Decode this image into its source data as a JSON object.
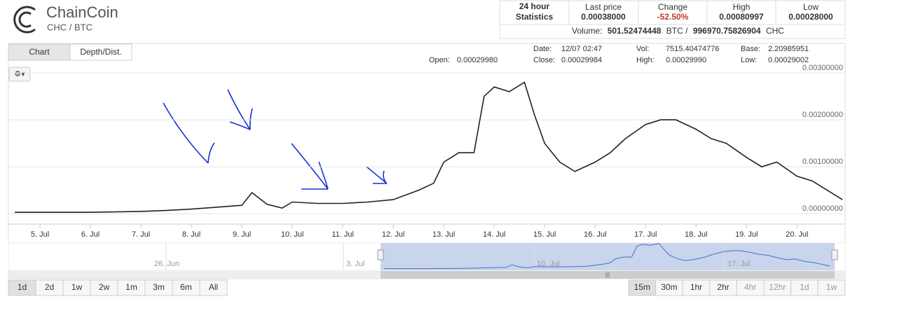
{
  "header": {
    "title": "ChainCoin",
    "pair": "CHC / BTC"
  },
  "stats": {
    "period": "24 hour Statistics",
    "last_price": {
      "label": "Last price",
      "value": "0.00038000"
    },
    "change": {
      "label": "Change",
      "value": "-52.50%"
    },
    "high": {
      "label": "High",
      "value": "0.00080997"
    },
    "low": {
      "label": "Low",
      "value": "0.00028000"
    },
    "volume": {
      "label": "Volume:",
      "base": "501.52474448",
      "base_unit": "BTC /",
      "quote": "996970.75826904",
      "quote_unit": "CHC"
    }
  },
  "tabs": [
    "Chart",
    "Depth/Dist."
  ],
  "ohlc": {
    "open": {
      "label": "Open:",
      "value": "0.00029980"
    },
    "date": {
      "label": "Date:",
      "value": "12/07 02:47"
    },
    "close": {
      "label": "Close:",
      "value": "0.00029984"
    },
    "vol": {
      "label": "Vol:",
      "value": "7515.40474776"
    },
    "high": {
      "label": "High:",
      "value": "0.00029990"
    },
    "base": {
      "label": "Base:",
      "value": "2.20985951"
    },
    "low": {
      "label": "Low:",
      "value": "0.00029002"
    }
  },
  "chart_data": {
    "type": "line",
    "color": "#222222",
    "x": [
      4.5,
      5,
      5.5,
      6,
      6.5,
      7,
      7.5,
      8,
      8.5,
      9,
      9.2,
      9.5,
      9.8,
      10,
      10.5,
      11,
      11.5,
      12,
      12.5,
      12.8,
      13,
      13.3,
      13.6,
      13.8,
      14,
      14.3,
      14.6,
      14.8,
      15,
      15.3,
      15.6,
      16,
      16.3,
      16.6,
      17,
      17.3,
      17.6,
      18,
      18.3,
      18.6,
      19,
      19.3,
      19.6,
      20,
      20.3,
      20.6,
      20.9
    ],
    "values": [
      3e-05,
      3e-05,
      3e-05,
      3e-05,
      4e-05,
      5e-05,
      7e-05,
      0.0001,
      0.00014,
      0.00018,
      0.00045,
      0.0002,
      0.00012,
      0.00025,
      0.00022,
      0.00022,
      0.00025,
      0.0003,
      0.0005,
      0.00065,
      0.0011,
      0.0013,
      0.0013,
      0.0025,
      0.0027,
      0.0026,
      0.0028,
      0.0021,
      0.0015,
      0.0011,
      0.0009,
      0.0011,
      0.0013,
      0.0016,
      0.0019,
      0.002,
      0.002,
      0.0018,
      0.0016,
      0.0015,
      0.0012,
      0.001,
      0.0011,
      0.0008,
      0.0007,
      0.0005,
      0.0003
    ],
    "xlim": [
      4.375,
      20.94
    ],
    "ylim": [
      -0.00019,
      0.00321
    ],
    "xticks": [
      {
        "value": 5,
        "label": "5. Jul"
      },
      {
        "value": 6,
        "label": "6. Jul"
      },
      {
        "value": 7,
        "label": "7. Jul"
      },
      {
        "value": 8,
        "label": "8. Jul"
      },
      {
        "value": 9,
        "label": "9. Jul"
      },
      {
        "value": 10,
        "label": "10. Jul"
      },
      {
        "value": 11,
        "label": "11. Jul"
      },
      {
        "value": 12,
        "label": "12. Jul"
      },
      {
        "value": 13,
        "label": "13. Jul"
      },
      {
        "value": 14,
        "label": "14. Jul"
      },
      {
        "value": 15,
        "label": "15. Jul"
      },
      {
        "value": 16,
        "label": "16. Jul"
      },
      {
        "value": 17,
        "label": "17. Jul"
      },
      {
        "value": 18,
        "label": "18. Jul"
      },
      {
        "value": 19,
        "label": "19. Jul"
      },
      {
        "value": 20,
        "label": "20. Jul"
      }
    ],
    "yticks": [
      {
        "value": 0,
        "label": "0.00000000"
      },
      {
        "value": 0.001,
        "label": "0.00100000"
      },
      {
        "value": 0.002,
        "label": "0.00200000"
      },
      {
        "value": 0.003,
        "label": "0.00300000"
      }
    ],
    "grid": true
  },
  "navigator": [
    "26. Jun",
    "3. Jul",
    "10. Jul",
    "17. Jul"
  ],
  "ranges": [
    "1d",
    "2d",
    "1w",
    "2w",
    "1m",
    "3m",
    "6m",
    "All"
  ],
  "intervals": [
    "15m",
    "30m",
    "1hr",
    "2hr",
    "4hr",
    "12hr",
    "1d",
    "1w"
  ]
}
